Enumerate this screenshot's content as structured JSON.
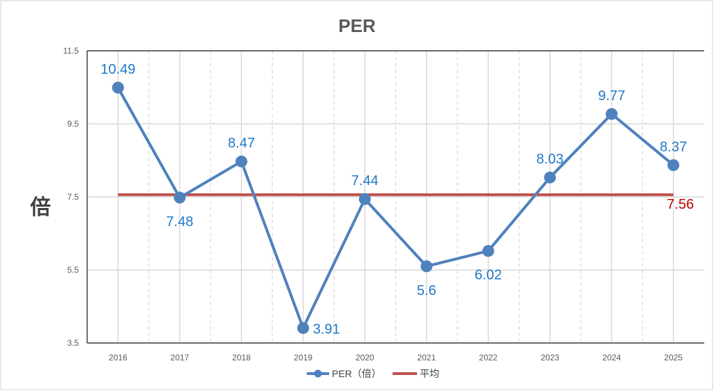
{
  "chart_data": {
    "type": "line",
    "title": "PER",
    "ylabel": "倍",
    "xlabel": "",
    "ylim": [
      3.5,
      11.5
    ],
    "yticks": [
      "11.5",
      "9.5",
      "7.5",
      "5.5",
      "3.5"
    ],
    "categories": [
      "2016",
      "2017",
      "2018",
      "2019",
      "2020",
      "2021",
      "2022",
      "2023",
      "2024",
      "2025"
    ],
    "series": [
      {
        "name": "PER（倍）",
        "values": [
          10.49,
          7.48,
          8.47,
          3.91,
          7.44,
          5.6,
          6.02,
          8.03,
          9.77,
          8.37
        ],
        "labels": [
          "10.49",
          "7.48",
          "8.47",
          "3.91",
          "7.44",
          "5.6",
          "6.02",
          "8.03",
          "9.77",
          "8.37"
        ],
        "color": "#4f81bd"
      },
      {
        "name": "平均",
        "value": 7.56,
        "label": "7.56",
        "color": "#c0504d"
      }
    ],
    "grid": true,
    "legend": "bottom"
  }
}
